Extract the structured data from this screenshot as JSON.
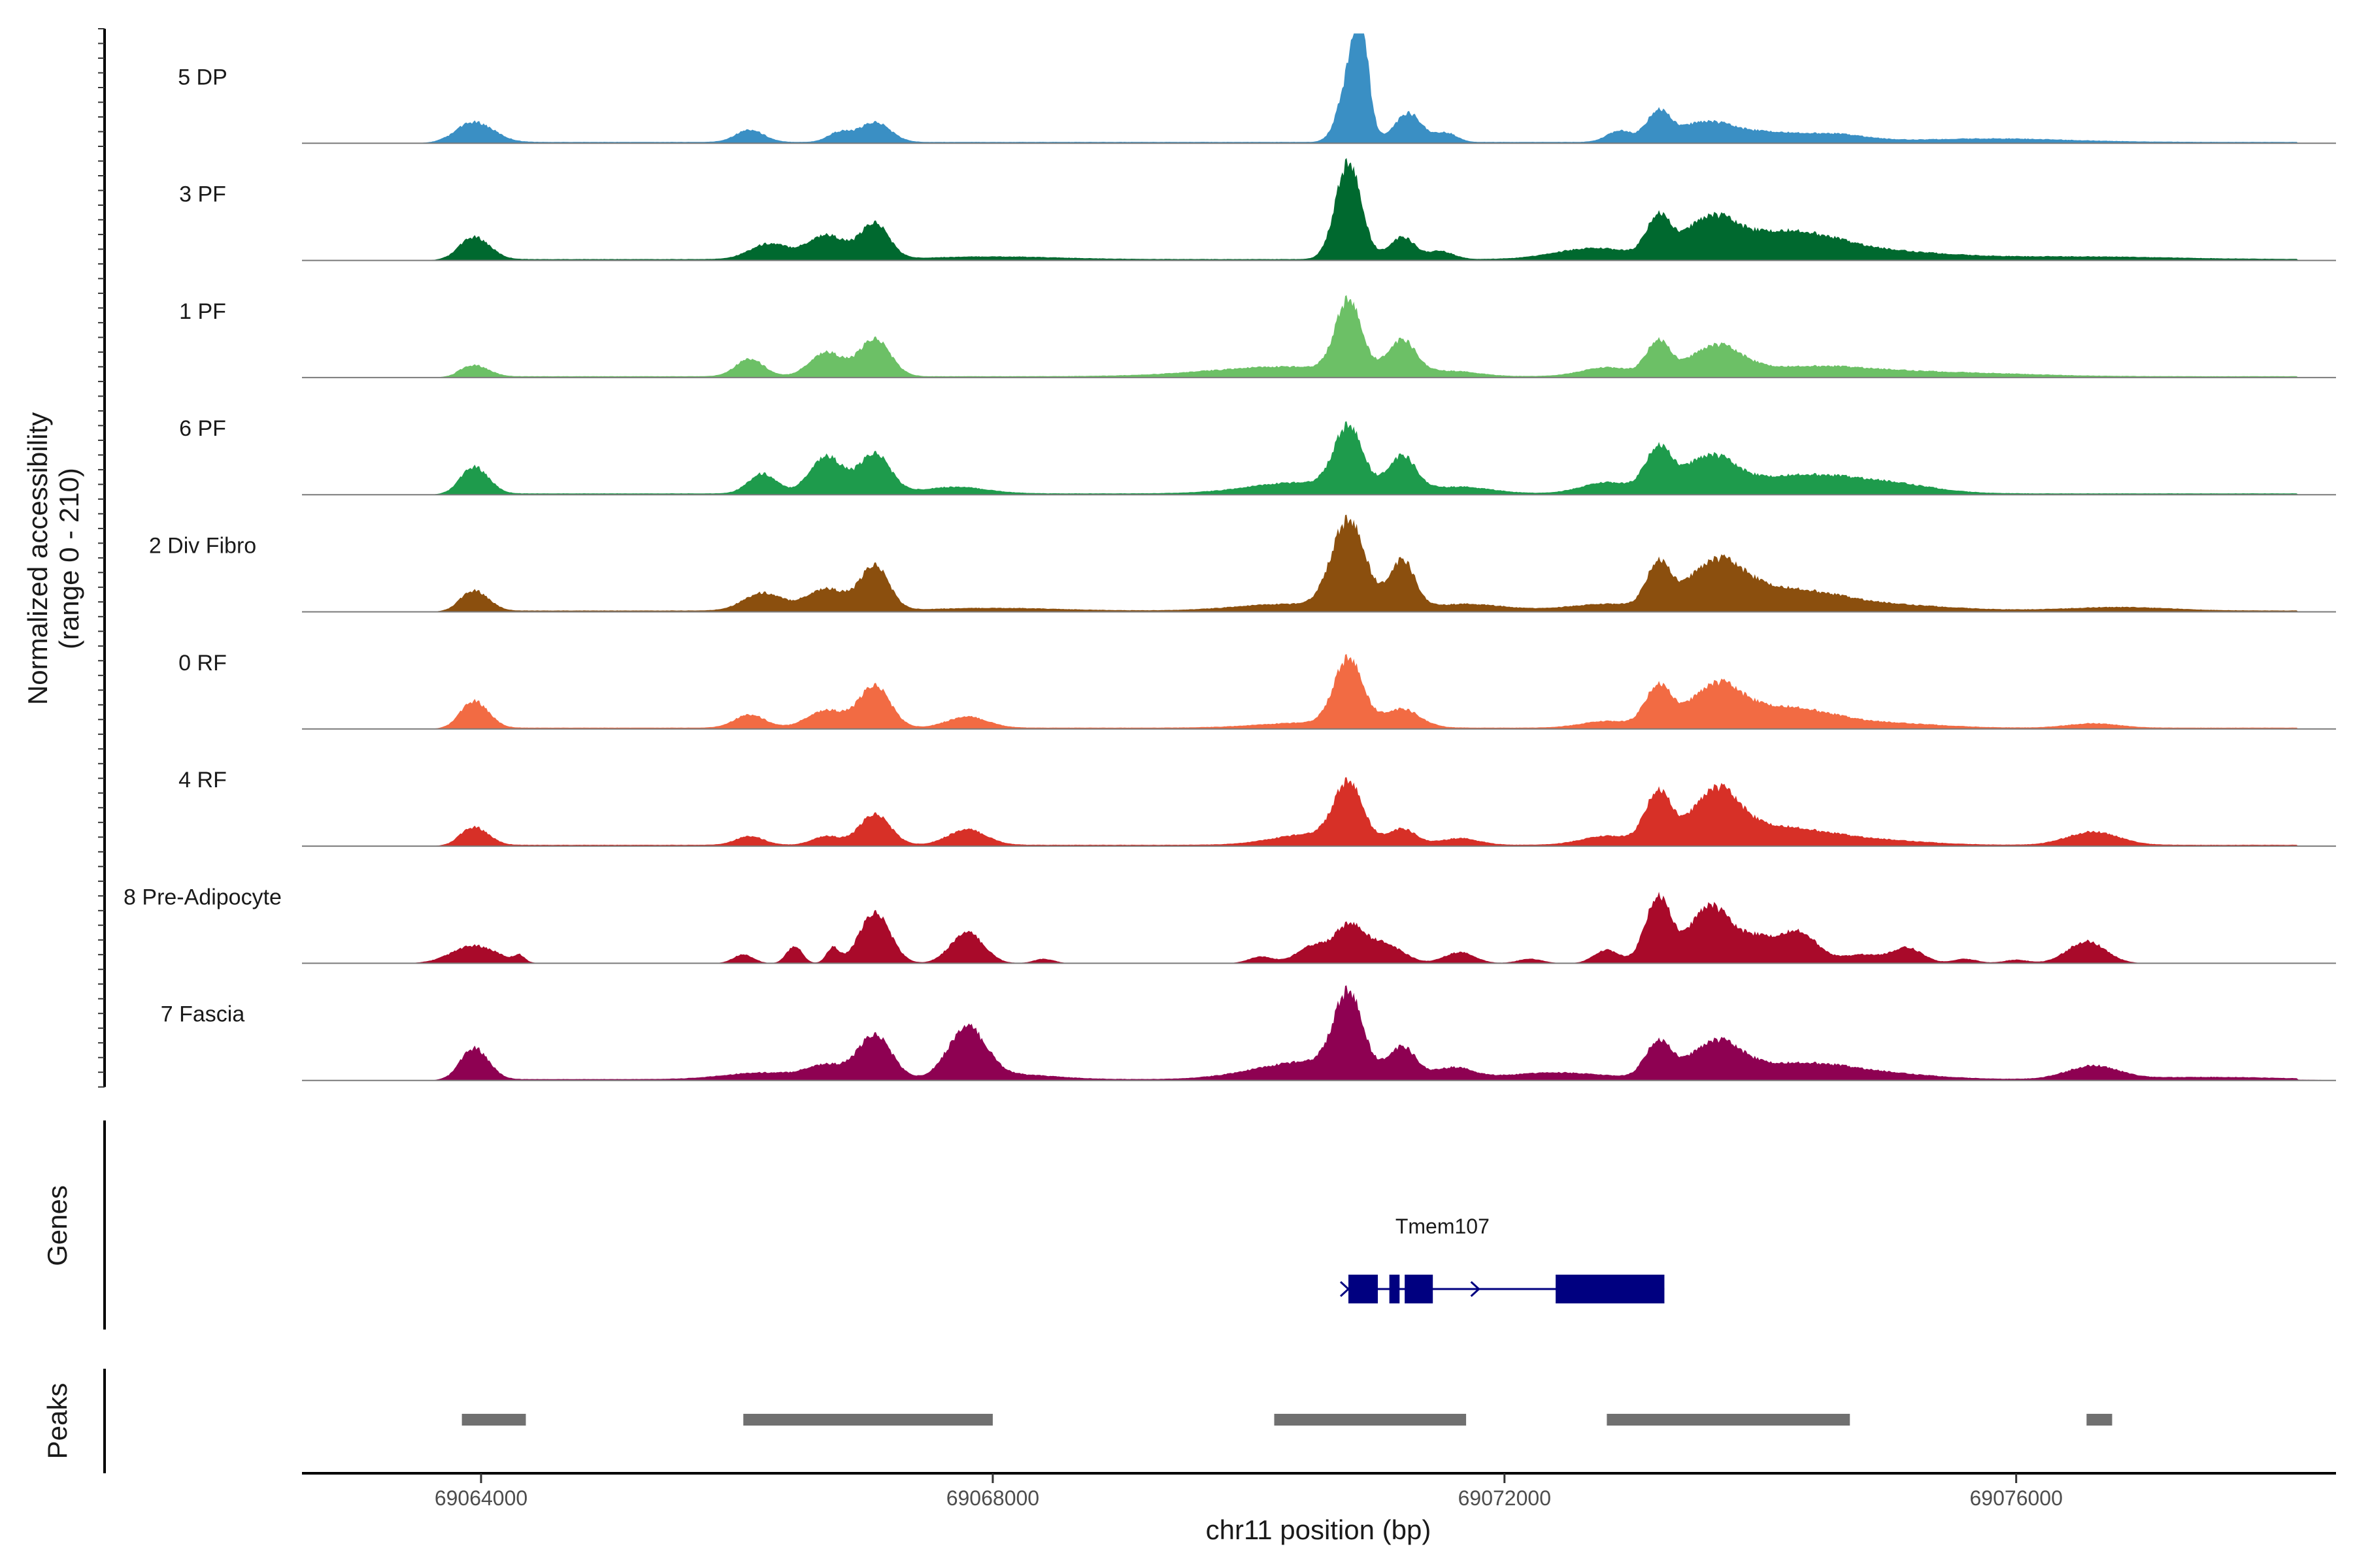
{
  "chart_data": {
    "type": "area",
    "subtype": "genome-coverage-tracks",
    "chromosome": "chr11",
    "x_range": [
      69062600,
      69078500
    ],
    "ylabel": "Normalized accessibility",
    "ylabel_range": "(range 0 - 210)",
    "ylim": [
      0,
      210
    ],
    "xlabel": "chr11 position (bp)",
    "x_ticks": [
      69064000,
      69068000,
      69072000,
      69076000
    ],
    "x_tick_labels": [
      "69064000",
      "69068000",
      "69072000",
      "69076000"
    ],
    "tracks": [
      {
        "name": "5 DP",
        "color": "#3A8FC4",
        "peaks": [
          [
            69063800,
            69078200,
            3
          ],
          [
            69063950,
            150,
            45
          ],
          [
            69066100,
            110,
            28
          ],
          [
            69066800,
            90,
            22
          ],
          [
            69067080,
            120,
            45
          ],
          [
            69070800,
            90,
            150
          ],
          [
            69070880,
            60,
            190
          ],
          [
            69071250,
            110,
            65
          ],
          [
            69071550,
            80,
            20
          ],
          [
            69072900,
            100,
            25
          ],
          [
            69073200,
            90,
            65
          ],
          [
            69073550,
            200,
            40
          ],
          [
            69074000,
            300,
            22
          ],
          [
            69074600,
            250,
            15
          ],
          [
            69075800,
            600,
            8
          ]
        ]
      },
      {
        "name": "3 PF",
        "color": "#00692F",
        "peaks": [
          [
            69063800,
            69078200,
            3
          ],
          [
            69063950,
            120,
            50
          ],
          [
            69066250,
            150,
            35
          ],
          [
            69066700,
            150,
            55
          ],
          [
            69067080,
            110,
            80
          ],
          [
            69068000,
            500,
            6
          ],
          [
            69070780,
            100,
            220
          ],
          [
            69071200,
            100,
            50
          ],
          [
            69071500,
            100,
            18
          ],
          [
            69072700,
            300,
            25
          ],
          [
            69073200,
            90,
            85
          ],
          [
            69073600,
            200,
            80
          ],
          [
            69074200,
            400,
            60
          ],
          [
            69075000,
            500,
            15
          ],
          [
            69076500,
            700,
            6
          ]
        ]
      },
      {
        "name": "1 PF",
        "color": "#6CC066",
        "peaks": [
          [
            69063800,
            69078200,
            3
          ],
          [
            69063950,
            110,
            25
          ],
          [
            69066100,
            110,
            40
          ],
          [
            69066700,
            130,
            55
          ],
          [
            69067080,
            120,
            85
          ],
          [
            69070300,
            600,
            22
          ],
          [
            69070780,
            100,
            160
          ],
          [
            69071200,
            110,
            75
          ],
          [
            69071600,
            200,
            10
          ],
          [
            69072800,
            200,
            20
          ],
          [
            69073200,
            90,
            75
          ],
          [
            69073650,
            200,
            65
          ],
          [
            69074400,
            500,
            22
          ],
          [
            69075500,
            600,
            8
          ]
        ]
      },
      {
        "name": "6 PF",
        "color": "#1E9B4C",
        "peaks": [
          [
            69063800,
            69078200,
            3
          ],
          [
            69063950,
            110,
            60
          ],
          [
            69066200,
            110,
            45
          ],
          [
            69066700,
            130,
            85
          ],
          [
            69067080,
            120,
            90
          ],
          [
            69067700,
            250,
            15
          ],
          [
            69070400,
            400,
            25
          ],
          [
            69070780,
            110,
            140
          ],
          [
            69071200,
            110,
            80
          ],
          [
            69071650,
            250,
            15
          ],
          [
            69072800,
            200,
            25
          ],
          [
            69073200,
            100,
            95
          ],
          [
            69073600,
            200,
            80
          ],
          [
            69074300,
            400,
            40
          ],
          [
            69075000,
            350,
            20
          ]
        ]
      },
      {
        "name": "2 Div Fibro",
        "color": "#8B4F0E",
        "peaks": [
          [
            69063800,
            69078200,
            3
          ],
          [
            69063950,
            110,
            45
          ],
          [
            69066200,
            150,
            40
          ],
          [
            69066700,
            160,
            50
          ],
          [
            69067080,
            110,
            100
          ],
          [
            69068000,
            500,
            6
          ],
          [
            69070300,
            400,
            15
          ],
          [
            69070780,
            130,
            200
          ],
          [
            69071200,
            100,
            110
          ],
          [
            69071700,
            300,
            15
          ],
          [
            69072800,
            300,
            15
          ],
          [
            69073200,
            90,
            95
          ],
          [
            69073650,
            220,
            100
          ],
          [
            69074200,
            400,
            45
          ],
          [
            69075000,
            500,
            12
          ],
          [
            69076800,
            400,
            8
          ]
        ]
      },
      {
        "name": "0 RF",
        "color": "#F26B43",
        "peaks": [
          [
            69063800,
            69078200,
            3
          ],
          [
            69063950,
            110,
            60
          ],
          [
            69066100,
            120,
            30
          ],
          [
            69066700,
            150,
            40
          ],
          [
            69067080,
            120,
            95
          ],
          [
            69067800,
            160,
            25
          ],
          [
            69070500,
            400,
            12
          ],
          [
            69070780,
            110,
            150
          ],
          [
            69071200,
            140,
            40
          ],
          [
            69072800,
            200,
            15
          ],
          [
            69073200,
            100,
            90
          ],
          [
            69073650,
            200,
            90
          ],
          [
            69074200,
            350,
            45
          ],
          [
            69075000,
            400,
            10
          ],
          [
            69076600,
            200,
            10
          ]
        ]
      },
      {
        "name": "4 RF",
        "color": "#D73027",
        "peaks": [
          [
            69063800,
            69078200,
            3
          ],
          [
            69063950,
            110,
            40
          ],
          [
            69066100,
            110,
            20
          ],
          [
            69066700,
            110,
            20
          ],
          [
            69067080,
            120,
            70
          ],
          [
            69067800,
            150,
            35
          ],
          [
            69070500,
            300,
            25
          ],
          [
            69070780,
            110,
            130
          ],
          [
            69071200,
            110,
            35
          ],
          [
            69071650,
            150,
            15
          ],
          [
            69072800,
            200,
            20
          ],
          [
            69073200,
            100,
            115
          ],
          [
            69073650,
            180,
            110
          ],
          [
            69074100,
            400,
            40
          ],
          [
            69074900,
            400,
            10
          ],
          [
            69076600,
            200,
            30
          ]
        ]
      },
      {
        "name": "8 Pre-Adipocyte",
        "color": "#A90A2A",
        "peaks": [
          [
            69063950,
            180,
            40
          ],
          [
            69064300,
            40,
            15
          ],
          [
            69066050,
            80,
            20
          ],
          [
            69066450,
            60,
            40
          ],
          [
            69066750,
            50,
            35
          ],
          [
            69067080,
            120,
            115
          ],
          [
            69067800,
            130,
            70
          ],
          [
            69068400,
            80,
            10
          ],
          [
            69070100,
            100,
            15
          ],
          [
            69070500,
            120,
            40
          ],
          [
            69070780,
            110,
            80
          ],
          [
            69071050,
            150,
            45
          ],
          [
            69071650,
            120,
            25
          ],
          [
            69072200,
            100,
            10
          ],
          [
            69072800,
            100,
            30
          ],
          [
            69073200,
            100,
            150
          ],
          [
            69073600,
            150,
            130
          ],
          [
            69073950,
            150,
            55
          ],
          [
            69074300,
            150,
            70
          ],
          [
            69074800,
            150,
            20
          ],
          [
            69075150,
            120,
            35
          ],
          [
            69075600,
            100,
            10
          ],
          [
            69076000,
            100,
            8
          ],
          [
            69076550,
            150,
            50
          ]
        ]
      },
      {
        "name": "7 Fascia",
        "color": "#8E0152",
        "peaks": [
          [
            69063800,
            69078200,
            3
          ],
          [
            69063950,
            110,
            70
          ],
          [
            69066200,
            300,
            15
          ],
          [
            69066700,
            150,
            30
          ],
          [
            69067080,
            130,
            100
          ],
          [
            69067800,
            150,
            115
          ],
          [
            69068200,
            300,
            10
          ],
          [
            69070100,
            300,
            15
          ],
          [
            69070550,
            300,
            35
          ],
          [
            69070780,
            110,
            175
          ],
          [
            69071200,
            110,
            70
          ],
          [
            69071600,
            150,
            25
          ],
          [
            69072400,
            400,
            15
          ],
          [
            69073200,
            100,
            80
          ],
          [
            69073650,
            200,
            80
          ],
          [
            69074300,
            400,
            35
          ],
          [
            69075000,
            400,
            10
          ],
          [
            69076600,
            200,
            30
          ],
          [
            69077500,
            500,
            5
          ]
        ]
      }
    ],
    "genes": {
      "title": "Genes",
      "label": "Tmem107",
      "color": "#000080",
      "line": [
        69070780,
        69073250
      ],
      "exons": [
        [
          69070780,
          69071010
        ],
        [
          69071100,
          69071180
        ],
        [
          69071220,
          69071440
        ],
        [
          69072400,
          69073250
        ]
      ],
      "strand_arrows": [
        69070780,
        69071800
      ]
    },
    "peak_regions": {
      "title": "Peaks",
      "color": "#707070",
      "regions": [
        [
          69063850,
          69064350
        ],
        [
          69066050,
          69068000
        ],
        [
          69070200,
          69071700
        ],
        [
          69072800,
          69074700
        ],
        [
          69076550,
          69076750
        ]
      ]
    }
  }
}
